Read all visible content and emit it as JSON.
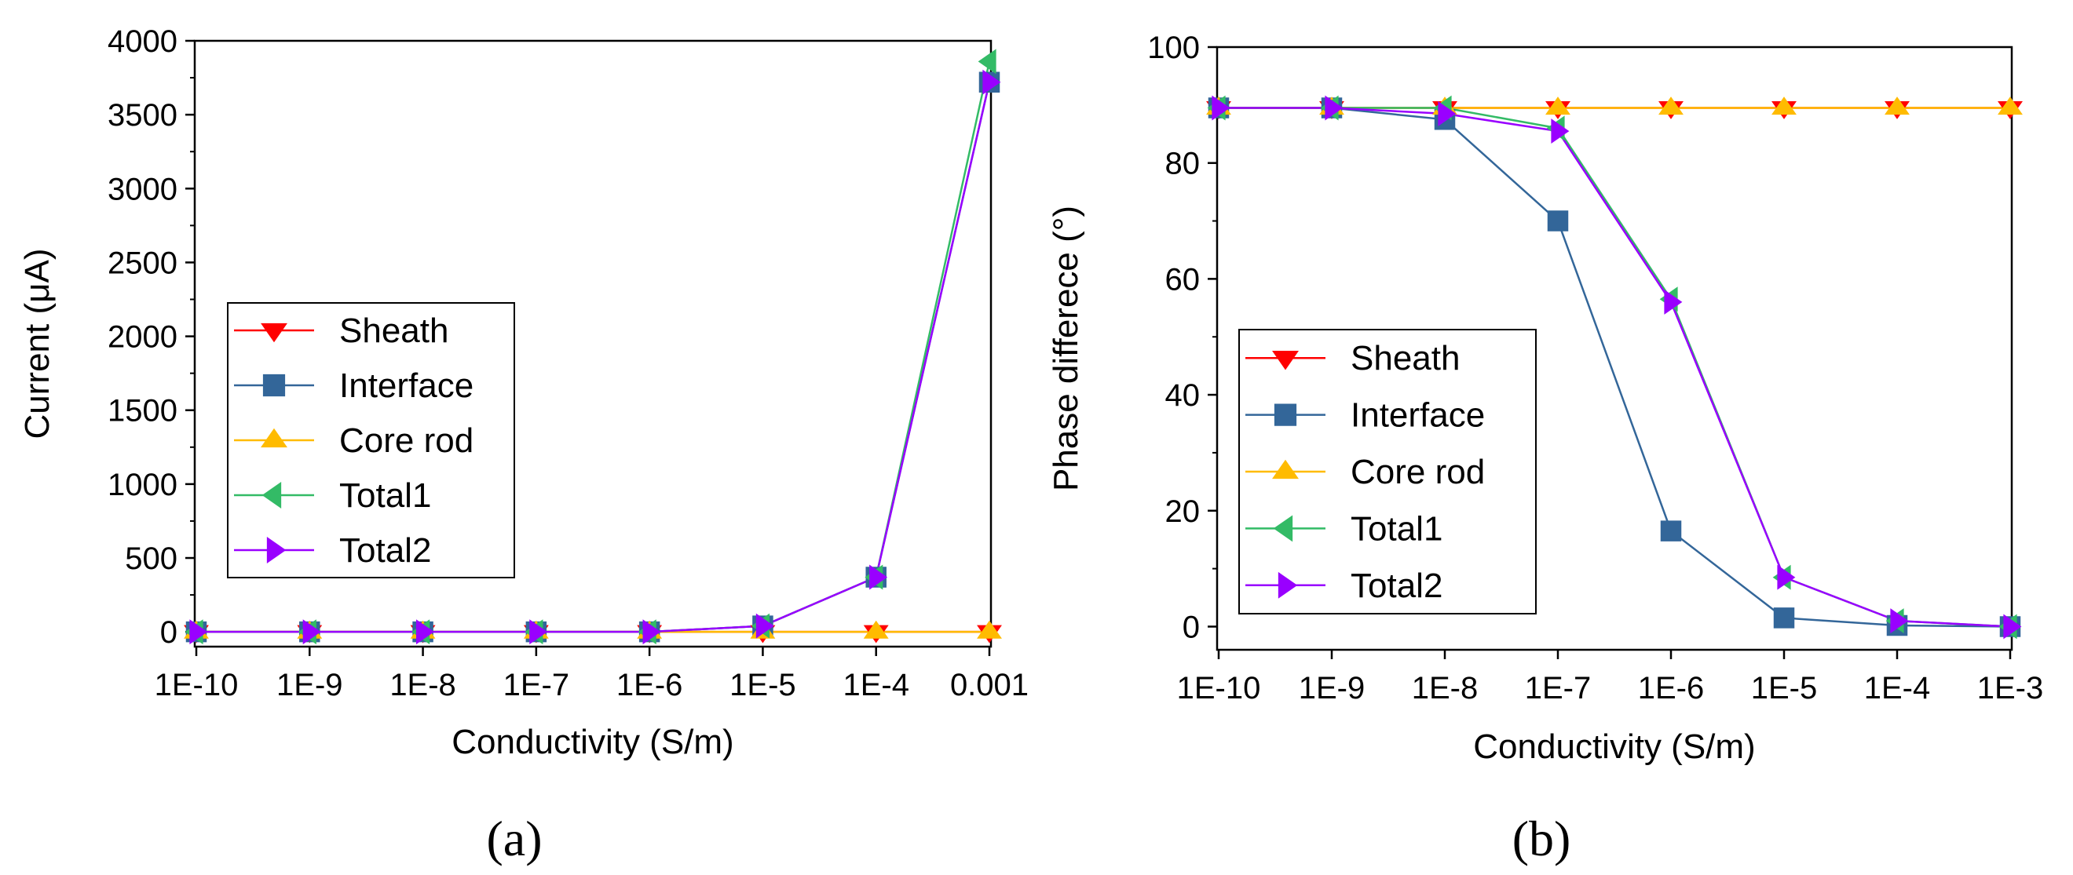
{
  "chart_data": [
    {
      "type": "line",
      "panel_label": "(a)",
      "xlabel": "Conductivity (S/m)",
      "ylabel": "Current (μA)",
      "x": [
        1e-10,
        1e-09,
        1e-08,
        1e-07,
        1e-06,
        1e-05,
        0.0001,
        0.001
      ],
      "xtick_labels": [
        "1E-10",
        "1E-9",
        "1E-8",
        "1E-7",
        "1E-6",
        "1E-5",
        "1E-4",
        "0.001"
      ],
      "xscale": "log",
      "ylim": [
        -100,
        4000
      ],
      "yticks": [
        0,
        500,
        1000,
        1500,
        2000,
        2500,
        3000,
        3500,
        4000
      ],
      "legend_position": "center-left",
      "series": [
        {
          "name": "Sheath",
          "values": [
            0,
            0,
            0,
            0,
            0,
            0,
            0,
            0
          ],
          "color": "#ff0000",
          "marker": "triangle-down"
        },
        {
          "name": "Interface",
          "values": [
            0,
            0,
            0,
            0,
            0,
            40,
            370,
            3720
          ],
          "color": "#336699",
          "marker": "square"
        },
        {
          "name": "Core rod",
          "values": [
            0,
            0,
            0,
            0,
            0,
            0,
            0,
            0
          ],
          "color": "#ffbb00",
          "marker": "triangle-up"
        },
        {
          "name": "Total1",
          "values": [
            0,
            0,
            0,
            0,
            0,
            40,
            370,
            3860
          ],
          "color": "#33bb66",
          "marker": "triangle-left"
        },
        {
          "name": "Total2",
          "values": [
            0,
            0,
            0,
            0,
            0,
            40,
            370,
            3720
          ],
          "color": "#9900ff",
          "marker": "triangle-right"
        }
      ]
    },
    {
      "type": "line",
      "panel_label": "(b)",
      "xlabel": "Conductivity (S/m)",
      "ylabel": "Phase differece (°)",
      "x": [
        1e-10,
        1e-09,
        1e-08,
        1e-07,
        1e-06,
        1e-05,
        0.0001,
        0.001
      ],
      "xtick_labels": [
        "1E-10",
        "1E-9",
        "1E-8",
        "1E-7",
        "1E-6",
        "1E-5",
        "1E-4",
        "1E-3"
      ],
      "xscale": "log",
      "ylim": [
        -4,
        100
      ],
      "yticks": [
        0,
        20,
        40,
        60,
        80,
        100
      ],
      "legend_position": "bottom-left",
      "series": [
        {
          "name": "Sheath",
          "values": [
            89.5,
            89.5,
            89.5,
            89.5,
            89.5,
            89.5,
            89.5,
            89.5
          ],
          "color": "#ff0000",
          "marker": "triangle-down"
        },
        {
          "name": "Interface",
          "values": [
            89.5,
            89.5,
            87.5,
            70,
            16.5,
            1.5,
            0.2,
            0
          ],
          "color": "#336699",
          "marker": "square"
        },
        {
          "name": "Core rod",
          "values": [
            89.5,
            89.5,
            89.5,
            89.5,
            89.5,
            89.5,
            89.5,
            89.5
          ],
          "color": "#ffbb00",
          "marker": "triangle-up"
        },
        {
          "name": "Total1",
          "values": [
            89.5,
            89.5,
            89.5,
            86,
            56.5,
            8.5,
            1,
            0
          ],
          "color": "#33bb66",
          "marker": "triangle-left"
        },
        {
          "name": "Total2",
          "values": [
            89.5,
            89.5,
            88.5,
            85.5,
            56,
            8.5,
            1,
            0
          ],
          "color": "#9900ff",
          "marker": "triangle-right"
        }
      ]
    }
  ]
}
